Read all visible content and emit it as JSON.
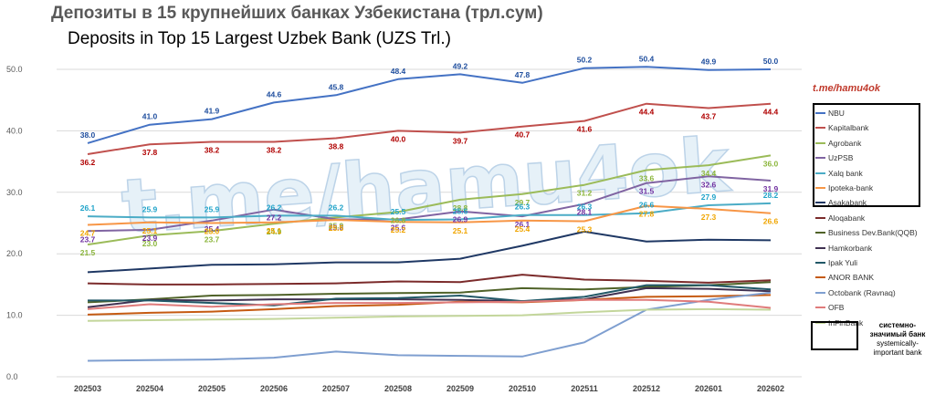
{
  "titles": {
    "ru": "Депозиты в 15 крупнейших банках Узбекистана (трл.сум)",
    "en": "Deposits in Top 15 Largest Uzbek Bank (UZS Trl.)"
  },
  "watermark": "t.me/hamu4ok",
  "side_watermark": "t.me/hamu4ok",
  "legend_note": {
    "ru": "системно-значимый банк",
    "en": "systemically-important bank"
  },
  "chart_data": {
    "type": "line",
    "title": "Deposits in Top 15 Largest Uzbek Bank (UZS Trl.)",
    "x": [
      "202503",
      "202504",
      "202505",
      "202506",
      "202507",
      "202508",
      "202509",
      "202510",
      "202511",
      "202512",
      "202601",
      "202602"
    ],
    "ylim": [
      0,
      50
    ],
    "yticks": [
      "0.0",
      "10.0",
      "20.0",
      "30.0",
      "40.0",
      "50.0"
    ],
    "grid": true,
    "legend_position": "right",
    "series": [
      {
        "name": "NBU",
        "color": "#4472c4",
        "label_color": "#1f4e9e",
        "labeled": true,
        "label_pos": "above",
        "values": [
          38.0,
          41.0,
          41.9,
          44.6,
          45.8,
          48.4,
          49.2,
          47.8,
          50.2,
          50.4,
          49.9,
          50.0
        ],
        "labels": [
          "38.0",
          "41.0",
          "41.9",
          "44.6",
          "45.8",
          "48.4",
          "49.2",
          "47.8",
          "50.2",
          "50.4",
          "49.9",
          "50.0"
        ]
      },
      {
        "name": "Kapitalbank",
        "color": "#c0504d",
        "label_color": "#b00000",
        "labeled": true,
        "label_pos": "below",
        "values": [
          36.2,
          37.8,
          38.2,
          38.2,
          38.8,
          40.0,
          39.7,
          40.7,
          41.6,
          44.4,
          43.7,
          44.4
        ],
        "labels": [
          "36.2",
          "37.8",
          "38.2",
          "38.2",
          "38.8",
          "40.0",
          "39.7",
          "40.7",
          "41.6",
          "44.4",
          "43.7",
          "44.4"
        ]
      },
      {
        "name": "Agrobank",
        "color": "#9bbb59",
        "label_color": "#8cb63c",
        "labeled": true,
        "label_pos": "below",
        "values": [
          21.5,
          23.0,
          23.7,
          24.9,
          25.9,
          26.8,
          28.8,
          29.7,
          31.2,
          33.6,
          34.4,
          36.0
        ],
        "labels": [
          "21.5",
          "23.0",
          "23.7",
          "24.9",
          "25.9",
          "26.8",
          "28.8",
          "29.7",
          "31.2",
          "33.6",
          "34.4",
          "36.0"
        ]
      },
      {
        "name": "UzPSB",
        "color": "#8064a2",
        "label_color": "#7030a0",
        "labeled": true,
        "label_pos": "below",
        "values": [
          23.7,
          23.9,
          25.4,
          27.2,
          25.6,
          25.6,
          26.9,
          26.1,
          28.1,
          31.5,
          32.6,
          31.9
        ],
        "labels": [
          "23.7",
          "23.9",
          "25.4",
          "27.2",
          "25.6",
          "25.6",
          "26.9",
          "26.1",
          "28.1",
          "31.5",
          "32.6",
          "31.9"
        ]
      },
      {
        "name": "Xalq bank",
        "color": "#4bacc6",
        "label_color": "#1fa3c9",
        "labeled": true,
        "label_pos": "above",
        "values": [
          26.1,
          25.9,
          25.9,
          26.2,
          26.2,
          25.5,
          25.6,
          26.3,
          26.3,
          26.6,
          27.9,
          28.2
        ],
        "labels": [
          "26.1",
          "25.9",
          "25.9",
          "26.2",
          "26.2",
          "25.5",
          "25.6",
          "26.3",
          "26.3",
          "26.6",
          "27.9",
          "28.2"
        ]
      },
      {
        "name": "Ipoteka-bank",
        "color": "#f79646",
        "label_color": "#f0a500",
        "labeled": true,
        "label_pos": "below",
        "values": [
          24.7,
          25.1,
          25.0,
          25.1,
          25.5,
          25.2,
          25.1,
          25.4,
          25.3,
          27.8,
          27.3,
          26.6
        ],
        "labels": [
          "24.7",
          "25.1",
          "25.0",
          "25.1",
          "25.5",
          "25.2",
          "25.1",
          "25.4",
          "25.3",
          "27.8",
          "27.3",
          "26.6"
        ]
      },
      {
        "name": "Asakabank",
        "color": "#1f3864",
        "labeled": false,
        "values": [
          17.0,
          17.6,
          18.2,
          18.3,
          18.6,
          18.6,
          19.2,
          21.3,
          23.6,
          22.0,
          22.3,
          22.2
        ]
      },
      {
        "name": "Aloqabank",
        "color": "#7b2b2b",
        "labeled": false,
        "values": [
          15.2,
          15.0,
          15.0,
          15.1,
          15.2,
          15.5,
          15.4,
          16.6,
          15.8,
          15.6,
          15.3,
          15.7
        ]
      },
      {
        "name": "Business Dev.Bank(QQB)",
        "color": "#4f6228",
        "labeled": false,
        "values": [
          12.1,
          12.6,
          13.2,
          13.3,
          13.5,
          13.6,
          13.7,
          14.4,
          14.2,
          14.6,
          14.9,
          15.4
        ]
      },
      {
        "name": "Hamkorbank",
        "color": "#403151",
        "labeled": false,
        "values": [
          11.3,
          12.5,
          12.4,
          12.6,
          12.6,
          12.6,
          12.5,
          12.3,
          12.6,
          14.4,
          14.3,
          13.9
        ]
      },
      {
        "name": "Ipak Yuli",
        "color": "#215867",
        "labeled": false,
        "values": [
          12.4,
          12.4,
          12.0,
          11.6,
          12.7,
          12.8,
          13.2,
          12.3,
          13.0,
          14.9,
          14.9,
          14.2
        ]
      },
      {
        "name": "ANOR BANK",
        "color": "#c55a11",
        "labeled": false,
        "values": [
          10.1,
          10.4,
          10.6,
          11.0,
          11.5,
          11.7,
          12.2,
          12.1,
          12.5,
          13.0,
          13.1,
          13.3
        ]
      },
      {
        "name": "Octobank (Ravnaq)",
        "color": "#7f9fd0",
        "labeled": false,
        "values": [
          2.6,
          2.7,
          2.8,
          3.1,
          4.1,
          3.5,
          3.4,
          3.3,
          5.6,
          10.9,
          12.5,
          13.7
        ]
      },
      {
        "name": "OFB",
        "color": "#e07b7b",
        "labeled": false,
        "values": [
          11.0,
          11.8,
          11.4,
          11.8,
          12.0,
          12.0,
          12.1,
          12.2,
          12.5,
          12.5,
          12.2,
          11.2
        ]
      },
      {
        "name": "InFinBank",
        "color": "#c3d69b",
        "labeled": false,
        "values": [
          9.1,
          9.2,
          9.3,
          9.4,
          9.6,
          9.8,
          9.9,
          10.0,
          10.5,
          10.9,
          11.0,
          10.9
        ]
      }
    ]
  }
}
